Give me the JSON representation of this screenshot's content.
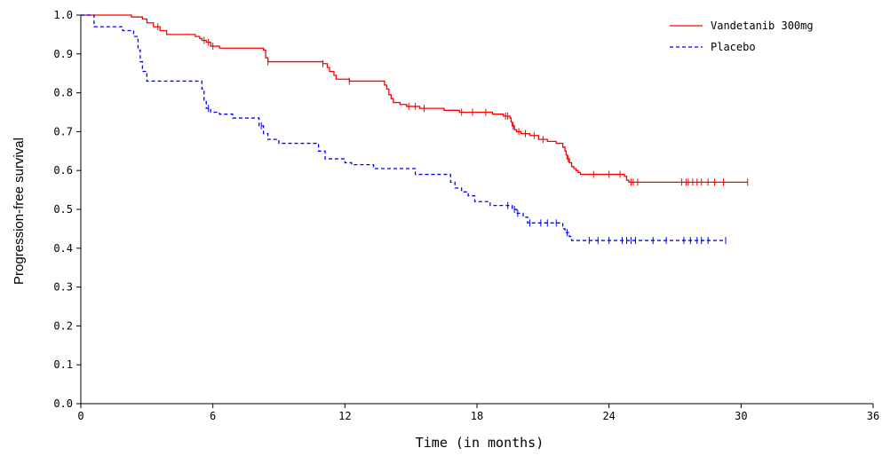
{
  "chart_data": {
    "type": "line",
    "title": "",
    "xlabel": "Time (in months)",
    "ylabel": "Progression-free survival",
    "xlim": [
      0,
      36
    ],
    "ylim": [
      0,
      1
    ],
    "x_ticks": [
      "0",
      "6",
      "12",
      "18",
      "24",
      "30",
      "36"
    ],
    "y_ticks": [
      "0.0",
      "0.1",
      "0.2",
      "0.3",
      "0.4",
      "0.5",
      "0.6",
      "0.7",
      "0.8",
      "0.9",
      "1.0"
    ],
    "legend_position": "top-right",
    "grid": false,
    "series": [
      {
        "name": "Vandetanib 300mg",
        "color": "#ff0000",
        "line_style": "solid",
        "steps": [
          [
            0,
            1.0
          ],
          [
            2.3,
            0.995
          ],
          [
            2.8,
            0.99
          ],
          [
            3.0,
            0.98
          ],
          [
            3.3,
            0.97
          ],
          [
            3.6,
            0.96
          ],
          [
            3.9,
            0.95
          ],
          [
            5.2,
            0.945
          ],
          [
            5.4,
            0.94
          ],
          [
            5.5,
            0.935
          ],
          [
            5.7,
            0.93
          ],
          [
            5.9,
            0.92
          ],
          [
            6.3,
            0.915
          ],
          [
            8.3,
            0.91
          ],
          [
            8.4,
            0.89
          ],
          [
            8.5,
            0.88
          ],
          [
            11.0,
            0.875
          ],
          [
            11.2,
            0.865
          ],
          [
            11.3,
            0.855
          ],
          [
            11.5,
            0.845
          ],
          [
            11.6,
            0.835
          ],
          [
            12.2,
            0.83
          ],
          [
            13.8,
            0.82
          ],
          [
            13.9,
            0.81
          ],
          [
            14.0,
            0.795
          ],
          [
            14.1,
            0.785
          ],
          [
            14.2,
            0.775
          ],
          [
            14.5,
            0.77
          ],
          [
            14.8,
            0.765
          ],
          [
            15.4,
            0.76
          ],
          [
            16.5,
            0.755
          ],
          [
            17.2,
            0.75
          ],
          [
            18.7,
            0.745
          ],
          [
            19.2,
            0.74
          ],
          [
            19.5,
            0.735
          ],
          [
            19.55,
            0.725
          ],
          [
            19.6,
            0.715
          ],
          [
            19.7,
            0.705
          ],
          [
            19.8,
            0.7
          ],
          [
            20.0,
            0.695
          ],
          [
            20.4,
            0.69
          ],
          [
            20.8,
            0.68
          ],
          [
            21.2,
            0.675
          ],
          [
            21.6,
            0.67
          ],
          [
            21.9,
            0.66
          ],
          [
            22.0,
            0.65
          ],
          [
            22.05,
            0.64
          ],
          [
            22.1,
            0.63
          ],
          [
            22.2,
            0.62
          ],
          [
            22.3,
            0.61
          ],
          [
            22.4,
            0.605
          ],
          [
            22.5,
            0.6
          ],
          [
            22.6,
            0.595
          ],
          [
            22.7,
            0.59
          ],
          [
            24.7,
            0.585
          ],
          [
            24.8,
            0.575
          ],
          [
            24.9,
            0.57
          ],
          [
            30.3,
            0.57
          ]
        ],
        "censored": [
          3.5,
          5.6,
          5.8,
          6.0,
          8.5,
          11.0,
          12.2,
          14.9,
          15.2,
          15.6,
          17.3,
          17.8,
          18.4,
          19.3,
          19.4,
          19.65,
          19.9,
          20.2,
          20.6,
          21.0,
          22.15,
          23.3,
          24.0,
          24.5,
          25.0,
          25.1,
          25.3,
          27.3,
          27.5,
          27.6,
          27.8,
          28.0,
          28.2,
          28.5,
          28.8,
          29.2,
          30.3
        ]
      },
      {
        "name": "Placebo",
        "color": "#0000ff",
        "line_style": "dashed",
        "steps": [
          [
            0,
            1.0
          ],
          [
            0.6,
            0.97
          ],
          [
            1.9,
            0.96
          ],
          [
            2.4,
            0.945
          ],
          [
            2.6,
            0.91
          ],
          [
            2.7,
            0.88
          ],
          [
            2.8,
            0.855
          ],
          [
            3.0,
            0.83
          ],
          [
            5.5,
            0.81
          ],
          [
            5.6,
            0.78
          ],
          [
            5.7,
            0.76
          ],
          [
            5.9,
            0.75
          ],
          [
            6.3,
            0.745
          ],
          [
            6.9,
            0.735
          ],
          [
            8.1,
            0.715
          ],
          [
            8.3,
            0.695
          ],
          [
            8.5,
            0.68
          ],
          [
            9.0,
            0.67
          ],
          [
            10.8,
            0.65
          ],
          [
            11.1,
            0.63
          ],
          [
            12.0,
            0.62
          ],
          [
            12.3,
            0.615
          ],
          [
            13.3,
            0.605
          ],
          [
            15.2,
            0.59
          ],
          [
            16.8,
            0.57
          ],
          [
            17.0,
            0.555
          ],
          [
            17.3,
            0.545
          ],
          [
            17.6,
            0.535
          ],
          [
            17.9,
            0.52
          ],
          [
            18.6,
            0.51
          ],
          [
            19.6,
            0.5
          ],
          [
            19.8,
            0.49
          ],
          [
            20.1,
            0.48
          ],
          [
            20.3,
            0.465
          ],
          [
            21.9,
            0.45
          ],
          [
            22.0,
            0.44
          ],
          [
            22.2,
            0.43
          ],
          [
            22.3,
            0.42
          ],
          [
            29.3,
            0.42
          ]
        ],
        "censored": [
          5.8,
          8.2,
          19.4,
          19.7,
          19.85,
          20.4,
          20.9,
          21.2,
          21.6,
          22.1,
          23.1,
          23.5,
          24.0,
          24.6,
          24.8,
          25.0,
          25.2,
          26.0,
          26.6,
          27.4,
          27.7,
          28.0,
          28.2,
          28.5,
          29.3
        ]
      }
    ]
  }
}
